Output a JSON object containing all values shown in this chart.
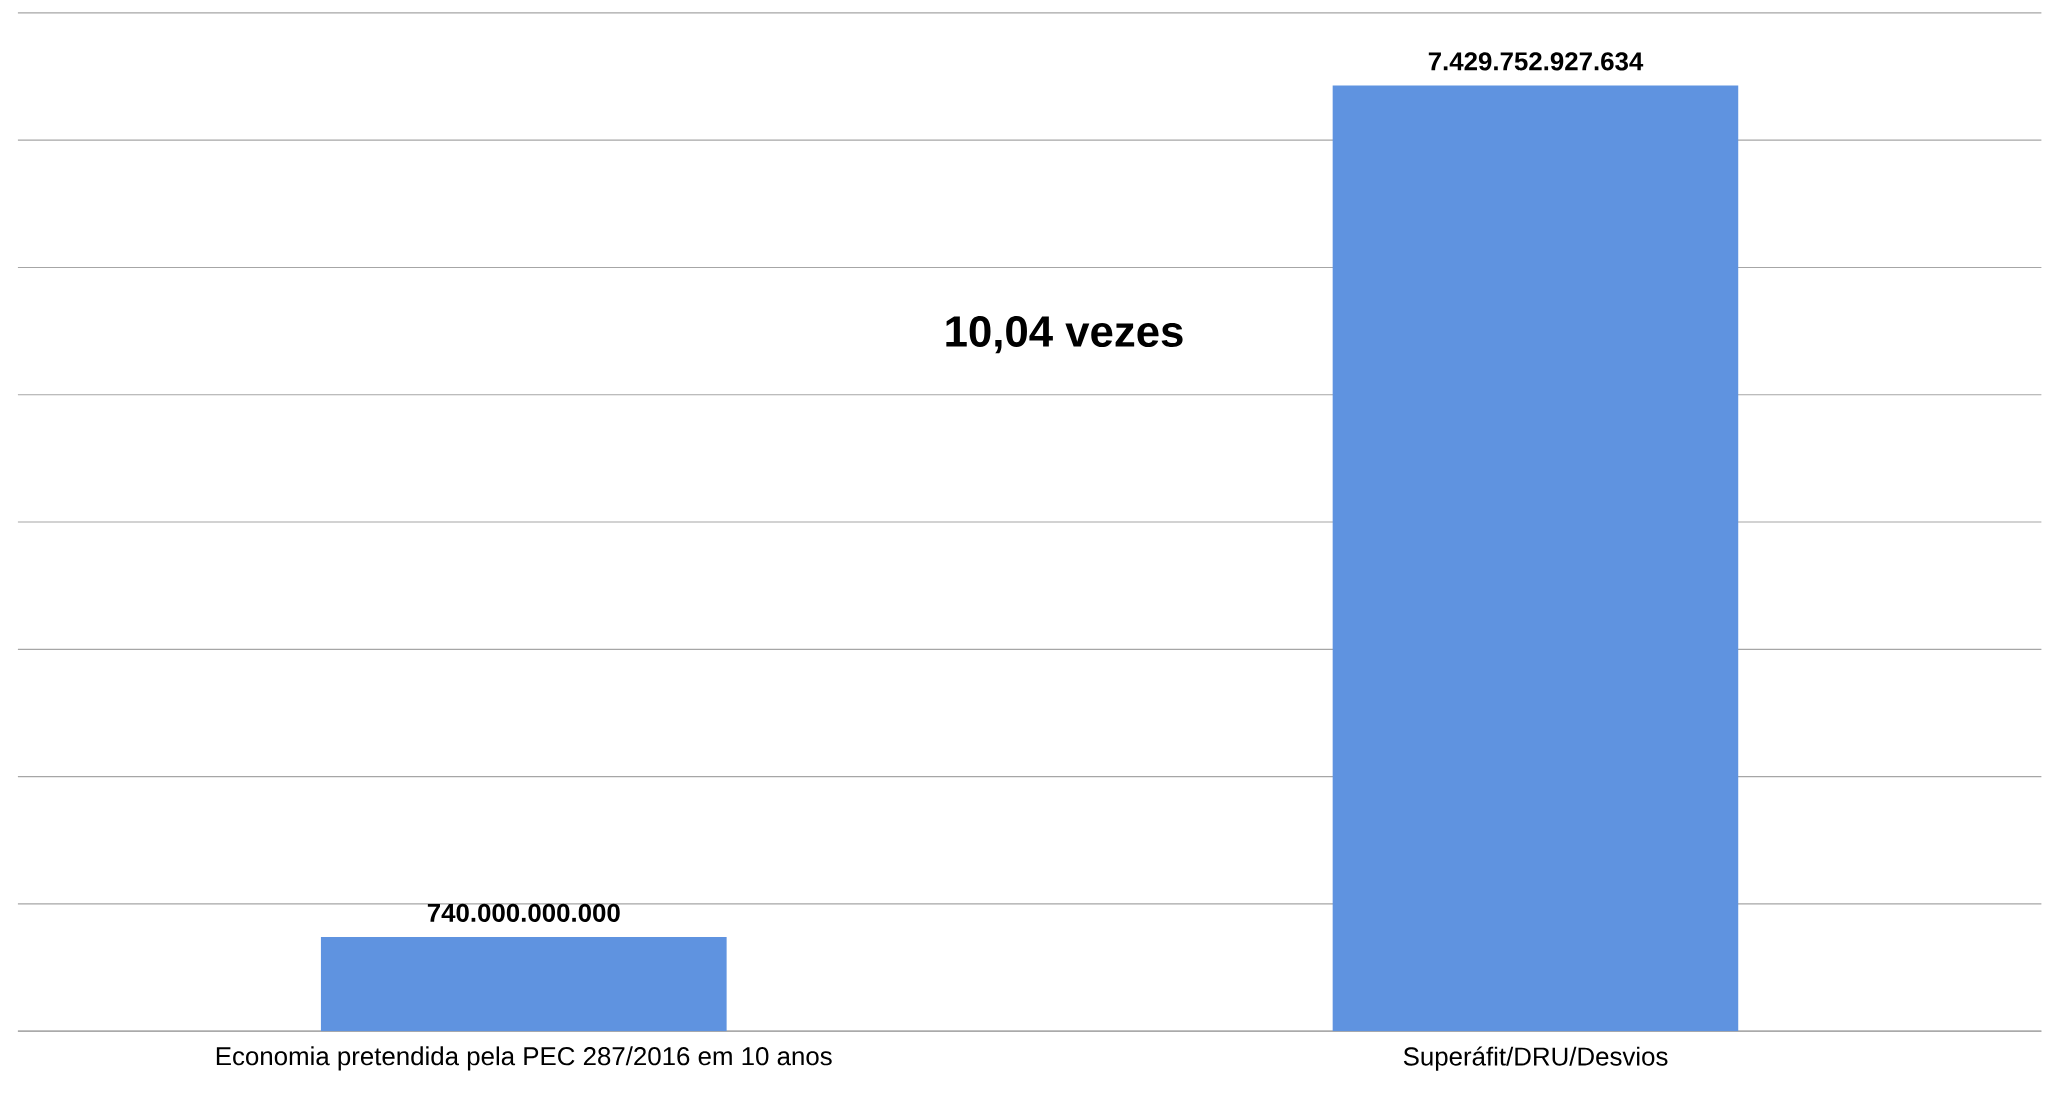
{
  "chart_data": {
    "type": "bar",
    "categories": [
      "Economia pretendida pela PEC 287/2016 em 10 anos",
      "Superáfit/DRU/Desvios"
    ],
    "values": [
      740000000000,
      7429752927634
    ],
    "value_labels": [
      "740.000.000.000",
      "7.429.752.927.634"
    ],
    "color": "#5f93e0",
    "ylim": [
      0,
      8000000000000
    ],
    "yticks": [
      {
        "value": 0,
        "label": null
      },
      {
        "value": 1000000000000,
        "label": null
      },
      {
        "value": 2000000000000,
        "label": null
      },
      {
        "value": 3000000000000,
        "label": null
      },
      {
        "value": 4000000000000,
        "label": null
      },
      {
        "value": 5000000000000,
        "label": null
      },
      {
        "value": 6000000000000,
        "label": null
      },
      {
        "value": 7000000000000,
        "label": null
      },
      {
        "value": 8000000000000,
        "label": null
      }
    ],
    "grid": "y",
    "annotations": [
      "10,04 vezes"
    ]
  }
}
